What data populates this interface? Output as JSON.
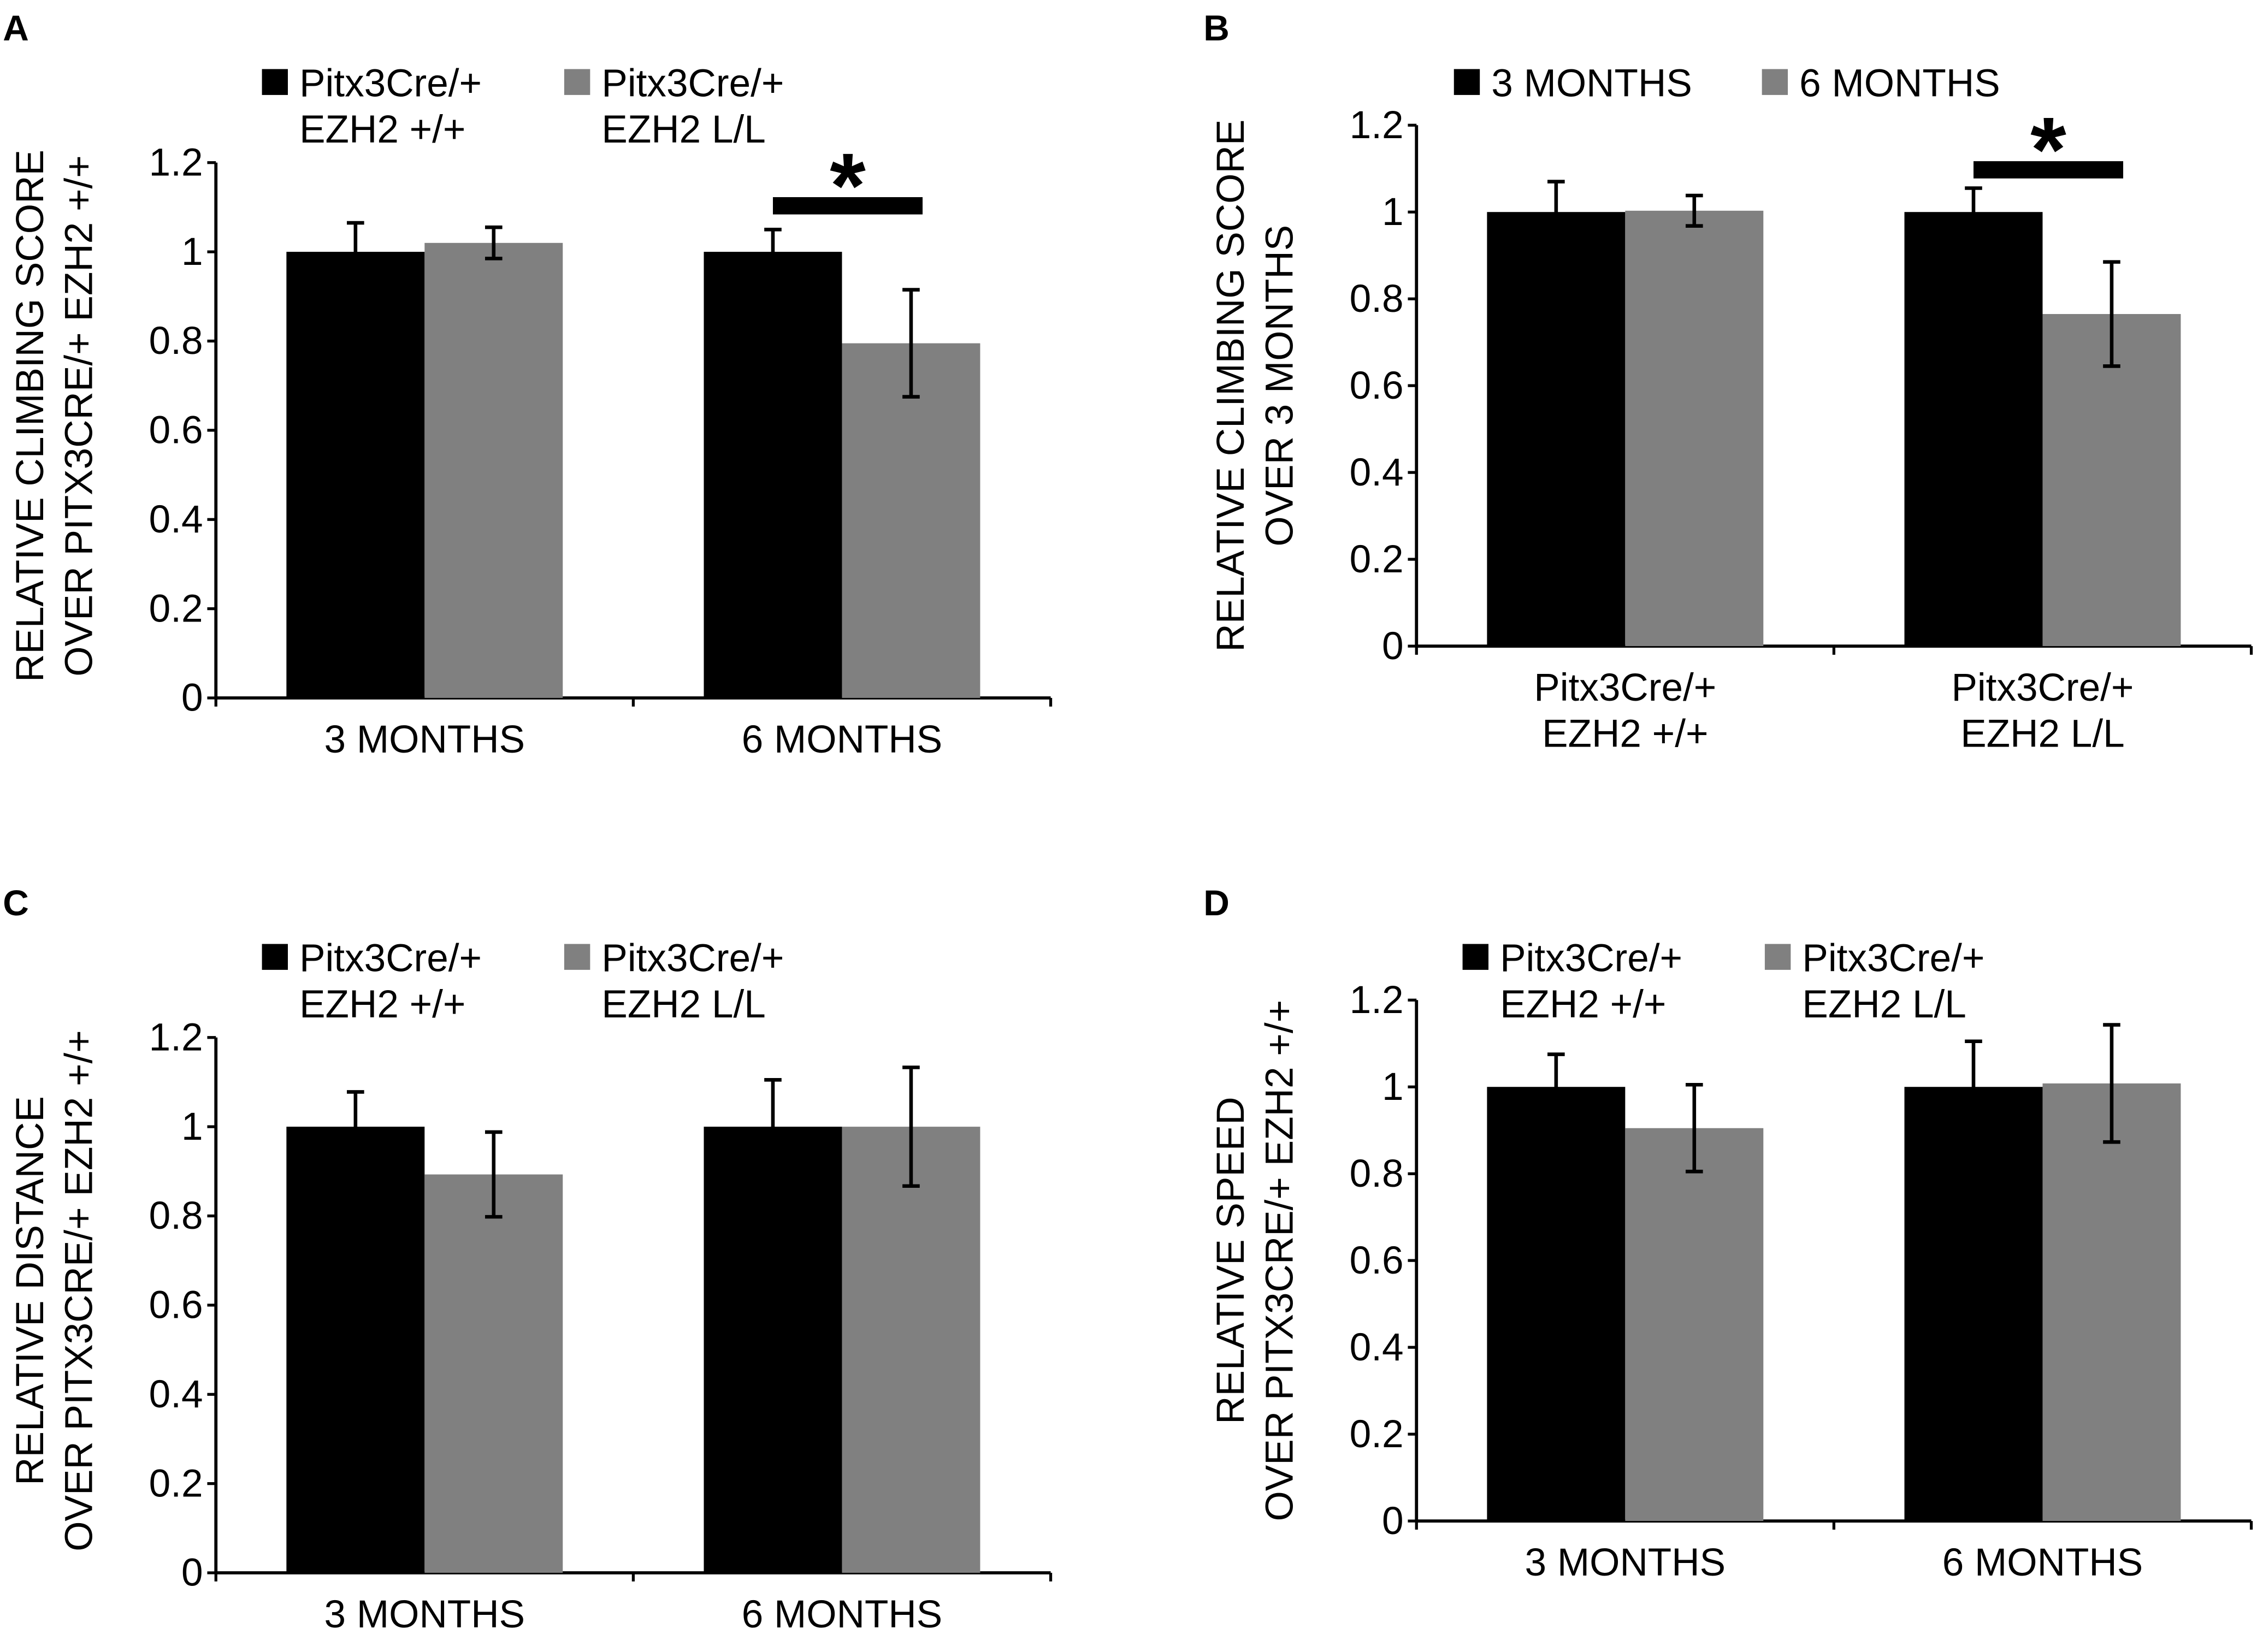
{
  "chart_data": [
    {
      "type": "bar",
      "panel": "A",
      "title": "",
      "legend": {
        "placement": "top",
        "entries": [
          {
            "lines": [
              "Pitx3Cre/+",
              "EZH2 +/+"
            ],
            "color": "#000000"
          },
          {
            "lines": [
              "Pitx3Cre/+",
              "EZH2 L/L"
            ],
            "color": "#808080"
          }
        ]
      },
      "ylabel_lines": [
        "RELATIVE CLIMBING SCORE",
        "OVER PITX3CRE/+ EZH2 +/+"
      ],
      "xlabel": "",
      "ylim": [
        0,
        1.2
      ],
      "yticks": [
        "0",
        "0.2",
        "0.4",
        "0.6",
        "0.8",
        "1",
        "1.2"
      ],
      "categories": [
        [
          "3 MONTHS"
        ],
        [
          "6 MONTHS"
        ]
      ],
      "series": [
        {
          "name": "Pitx3Cre/+ EZH2 +/+",
          "color": "#000000",
          "values": [
            1.0,
            1.0
          ],
          "errors": [
            0.065,
            0.05
          ]
        },
        {
          "name": "Pitx3Cre/+ EZH2 L/L",
          "color": "#808080",
          "values": [
            1.02,
            0.795
          ],
          "errors": [
            0.035,
            0.12
          ]
        }
      ],
      "significance": {
        "category": 1,
        "label": "*"
      }
    },
    {
      "type": "bar",
      "panel": "B",
      "title": "",
      "legend": {
        "placement": "top",
        "entries": [
          {
            "lines": [
              "3 MONTHS"
            ],
            "color": "#000000"
          },
          {
            "lines": [
              "6 MONTHS"
            ],
            "color": "#808080"
          }
        ]
      },
      "ylabel_lines": [
        "RELATIVE CLIMBING SCORE",
        "OVER 3 MONTHS"
      ],
      "xlabel": "",
      "ylim": [
        0,
        1.2
      ],
      "yticks": [
        "0",
        "0.2",
        "0.4",
        "0.6",
        "0.8",
        "1",
        "1.2"
      ],
      "categories": [
        [
          "Pitx3Cre/+",
          "EZH2 +/+"
        ],
        [
          "Pitx3Cre/+",
          "EZH2 L/L"
        ]
      ],
      "series": [
        {
          "name": "3 MONTHS",
          "color": "#000000",
          "values": [
            1.0,
            1.0
          ],
          "errors": [
            0.07,
            0.055
          ]
        },
        {
          "name": "6 MONTHS",
          "color": "#808080",
          "values": [
            1.003,
            0.765
          ],
          "errors": [
            0.035,
            0.12
          ]
        }
      ],
      "significance": {
        "category": 1,
        "label": "*"
      }
    },
    {
      "type": "bar",
      "panel": "C",
      "title": "",
      "legend": {
        "placement": "top",
        "entries": [
          {
            "lines": [
              "Pitx3Cre/+",
              "EZH2 +/+"
            ],
            "color": "#000000"
          },
          {
            "lines": [
              "Pitx3Cre/+",
              "EZH2 L/L"
            ],
            "color": "#808080"
          }
        ]
      },
      "ylabel_lines": [
        "RELATIVE DISTANCE",
        "OVER PITX3CRE/+ EZH2 +/+"
      ],
      "xlabel": "",
      "ylim": [
        0,
        1.2
      ],
      "yticks": [
        "0",
        "0.2",
        "0.4",
        "0.6",
        "0.8",
        "1",
        "1.2"
      ],
      "categories": [
        [
          "3 MONTHS"
        ],
        [
          "6 MONTHS"
        ]
      ],
      "series": [
        {
          "name": "Pitx3Cre/+ EZH2 +/+",
          "color": "#000000",
          "values": [
            1.0,
            1.0
          ],
          "errors": [
            0.078,
            0.105
          ]
        },
        {
          "name": "Pitx3Cre/+ EZH2 L/L",
          "color": "#808080",
          "values": [
            0.893,
            1.0
          ],
          "errors": [
            0.095,
            0.133
          ]
        }
      ],
      "significance": null
    },
    {
      "type": "bar",
      "panel": "D",
      "title": "",
      "legend": {
        "placement": "top",
        "entries": [
          {
            "lines": [
              "Pitx3Cre/+",
              "EZH2 +/+"
            ],
            "color": "#000000"
          },
          {
            "lines": [
              "Pitx3Cre/+",
              "EZH2 L/L"
            ],
            "color": "#808080"
          }
        ]
      },
      "ylabel_lines": [
        "RELATIVE SPEED",
        "OVER PITX3CRE/+ EZH2 +/+"
      ],
      "xlabel": "",
      "ylim": [
        0,
        1.2
      ],
      "yticks": [
        "0",
        "0.2",
        "0.4",
        "0.6",
        "0.8",
        "1",
        "1.2"
      ],
      "categories": [
        [
          "3 MONTHS"
        ],
        [
          "6 MONTHS"
        ]
      ],
      "series": [
        {
          "name": "Pitx3Cre/+ EZH2 +/+",
          "color": "#000000",
          "values": [
            1.0,
            1.0
          ],
          "errors": [
            0.075,
            0.105
          ]
        },
        {
          "name": "Pitx3Cre/+ EZH2 L/L",
          "color": "#808080",
          "values": [
            0.905,
            1.008
          ],
          "errors": [
            0.1,
            0.135
          ]
        }
      ],
      "significance": null
    }
  ]
}
